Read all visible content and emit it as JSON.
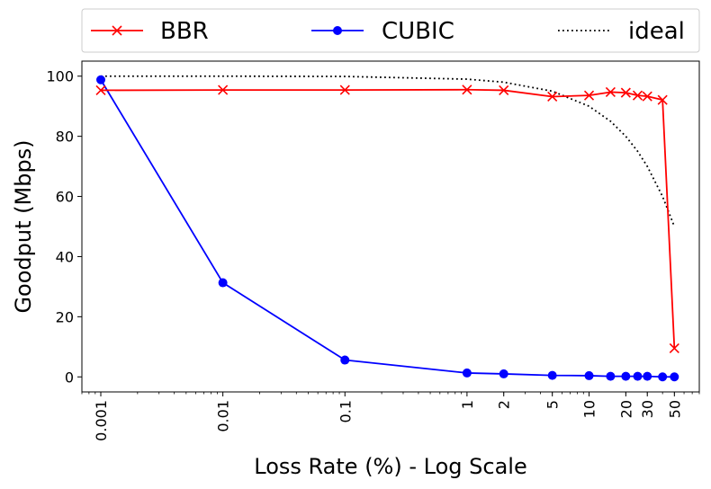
{
  "chart_data": {
    "type": "line",
    "xlabel": "Loss Rate (%) - Log Scale",
    "ylabel": "Goodput (Mbps)",
    "x_scale": "log",
    "xlim": [
      0.0007,
      80
    ],
    "ylim": [
      -5,
      105
    ],
    "x_ticks": [
      0.001,
      0.01,
      0.1,
      1,
      2,
      5,
      10,
      20,
      30,
      50
    ],
    "x_tick_labels": [
      "0.001",
      "0.01",
      "0.1",
      "1",
      "2",
      "5",
      "10",
      "20",
      "30",
      "50"
    ],
    "y_ticks": [
      0,
      20,
      40,
      60,
      80,
      100
    ],
    "y_tick_labels": [
      "0",
      "20",
      "40",
      "60",
      "80",
      "100"
    ],
    "grid": false,
    "legend_position": "top",
    "series": [
      {
        "name": "BBR",
        "color": "#ff0000",
        "marker": "x",
        "x": [
          0.001,
          0.01,
          0.1,
          1,
          2,
          5,
          10,
          15,
          20,
          25,
          30,
          40,
          50
        ],
        "y": [
          95.3,
          95.4,
          95.4,
          95.5,
          95.3,
          93.2,
          93.6,
          94.7,
          94.5,
          93.6,
          93.3,
          92.1,
          9.5
        ]
      },
      {
        "name": "CUBIC",
        "color": "#0000ff",
        "marker": "o",
        "x": [
          0.001,
          0.01,
          0.1,
          1,
          2,
          5,
          10,
          15,
          20,
          25,
          30,
          40,
          50
        ],
        "y": [
          98.8,
          31.3,
          5.6,
          1.3,
          1.0,
          0.5,
          0.4,
          0.2,
          0.2,
          0.2,
          0.2,
          0.0,
          0.0
        ]
      },
      {
        "name": "ideal",
        "color": "#000000",
        "marker": "none",
        "line_style": "dotted",
        "x": [
          0.001,
          0.01,
          0.1,
          1,
          2,
          5,
          10,
          15,
          20,
          25,
          30,
          40,
          50
        ],
        "y": [
          100,
          100,
          99.9,
          99,
          98,
          95,
          90,
          85,
          80,
          75,
          70,
          60,
          50
        ]
      }
    ]
  }
}
